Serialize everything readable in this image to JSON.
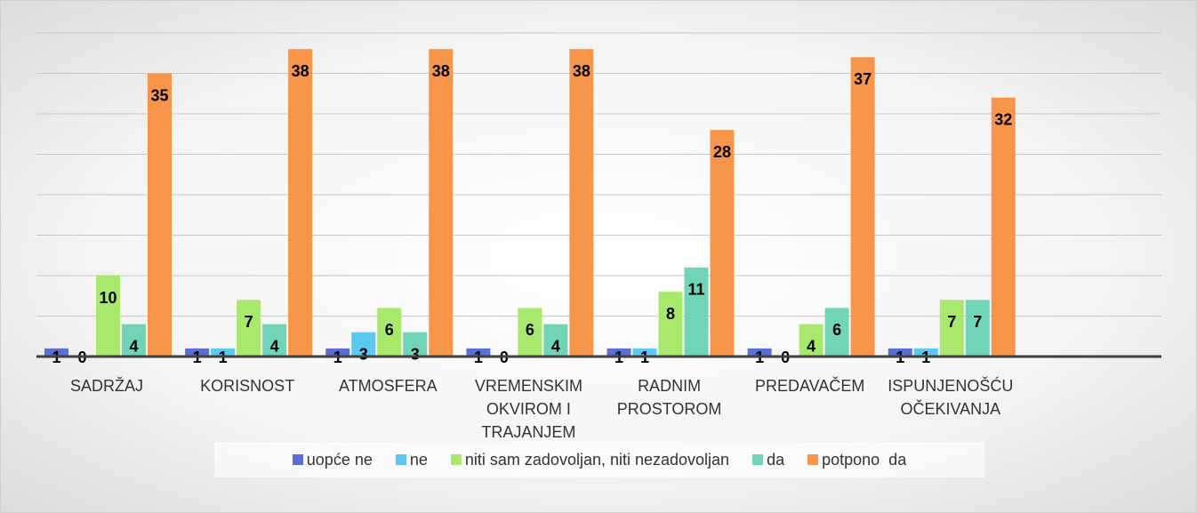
{
  "chart_data": {
    "type": "bar",
    "categories": [
      "SADRŽAJ",
      "KORISNOST",
      "ATMOSFERA",
      "VREMENSKIM OKVIROM I TRAJANJEM",
      "RADNIM PROSTOROM",
      "PREDAVAČEM",
      "ISPUNJENOŠĆU OČEKIVANJA",
      null
    ],
    "series": [
      {
        "name": "uopće ne",
        "color": "#5a6fd2",
        "values": [
          1,
          1,
          1,
          1,
          1,
          1,
          1,
          null
        ]
      },
      {
        "name": "ne",
        "color": "#5cc8f0",
        "values": [
          0,
          1,
          3,
          0,
          1,
          0,
          1,
          null
        ]
      },
      {
        "name": "niti sam zadovoljan, niti nezadovoljan",
        "color": "#a8e86c",
        "values": [
          10,
          7,
          6,
          6,
          8,
          4,
          7,
          null
        ]
      },
      {
        "name": "da",
        "color": "#6fd4b8",
        "values": [
          4,
          4,
          3,
          4,
          11,
          6,
          7,
          null
        ]
      },
      {
        "name": "potpono  da",
        "color": "#f7964a",
        "values": [
          35,
          38,
          38,
          38,
          28,
          37,
          32,
          null
        ]
      }
    ],
    "ylim": [
      0,
      40
    ],
    "yticks": [
      0,
      5,
      10,
      15,
      20,
      25,
      30,
      35,
      40
    ],
    "grid": true,
    "legend": "bottom"
  }
}
